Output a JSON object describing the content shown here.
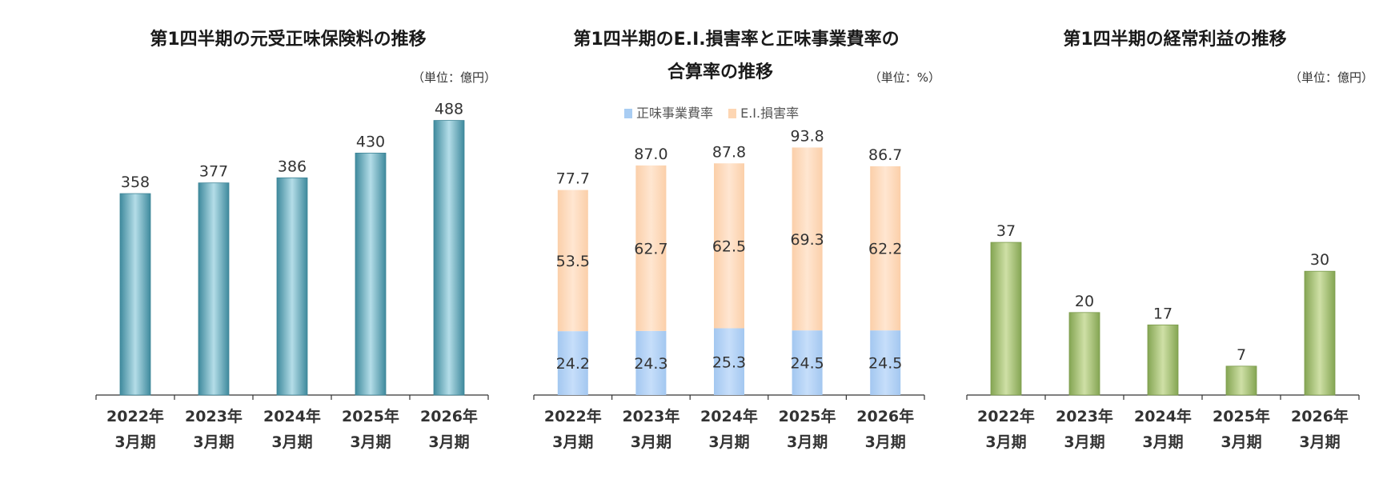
{
  "colors": {
    "teal": "#4a97aa",
    "green": "#8fae5c",
    "blue": "#a9cdf3",
    "peach": "#fdd6b3",
    "axis": "#333333"
  },
  "chart_data": [
    {
      "type": "bar",
      "title": "第1四半期の元受正味保険料の推移",
      "unit": "（単位：億円）",
      "categories": [
        "2022年\n3月期",
        "2023年\n3月期",
        "2024年\n3月期",
        "2025年\n3月期",
        "2026年\n3月期"
      ],
      "values": [
        358,
        377,
        386,
        430,
        488
      ],
      "ylim": [
        0,
        540
      ],
      "grid": false
    },
    {
      "type": "bar",
      "stacked": true,
      "title_line1": "第1四半期のE.I.損害率と正味事業費率の",
      "title_line2": "合算率の推移",
      "unit": "（単位：%）",
      "categories": [
        "2022年\n3月期",
        "2023年\n3月期",
        "2024年\n3月期",
        "2025年\n3月期",
        "2026年\n3月期"
      ],
      "series": [
        {
          "name": "正味事業費率",
          "values": [
            24.2,
            24.3,
            25.3,
            24.5,
            24.5
          ]
        },
        {
          "name": "E.I.損害率",
          "values": [
            53.5,
            62.7,
            62.5,
            69.3,
            62.2
          ]
        }
      ],
      "totals": [
        "77.7",
        "87.0",
        "87.8",
        "93.8",
        "86.7"
      ],
      "legend_position": "top",
      "ylim": [
        0,
        100
      ],
      "grid": false
    },
    {
      "type": "bar",
      "title": "第1四半期の経常利益の推移",
      "unit": "（単位：億円）",
      "categories": [
        "2022年\n3月期",
        "2023年\n3月期",
        "2024年\n3月期",
        "2025年\n3月期",
        "2026年\n3月期"
      ],
      "values": [
        37,
        20,
        17,
        7,
        30
      ],
      "ylim": [
        0,
        50
      ],
      "grid": false
    }
  ]
}
